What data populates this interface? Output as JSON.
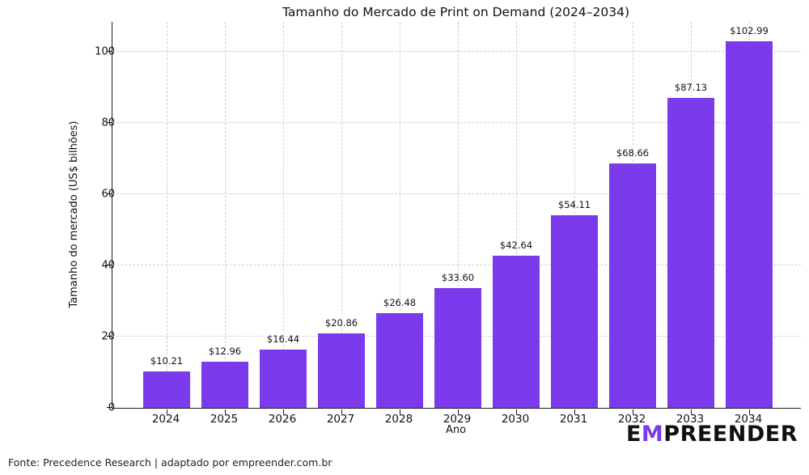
{
  "chart_data": {
    "type": "bar",
    "title": "Tamanho do Mercado de Print on Demand (2024–2034)",
    "xlabel": "Ano",
    "ylabel": "Tamanho do mercado (US$ bilhões)",
    "categories": [
      "2024",
      "2025",
      "2026",
      "2027",
      "2028",
      "2029",
      "2030",
      "2031",
      "2032",
      "2033",
      "2034"
    ],
    "values": [
      10.21,
      12.96,
      16.44,
      20.86,
      26.48,
      33.6,
      42.64,
      54.11,
      68.66,
      87.13,
      102.99
    ],
    "bar_labels": [
      "$10.21",
      "$12.96",
      "$16.44",
      "$20.86",
      "$26.48",
      "$33.60",
      "$42.64",
      "$54.11",
      "$68.66",
      "$87.13",
      "$102.99"
    ],
    "yticks": [
      0,
      20,
      40,
      60,
      80,
      100
    ],
    "ylim": [
      0,
      108.4
    ],
    "bar_color": "#7C3AED",
    "grid": "dashed-both-axes",
    "legend": "none"
  },
  "footer": {
    "source": "Fonte: Precedence Research | adaptado por empreender.com.br"
  },
  "logo": {
    "part1": "E",
    "part2": "M",
    "part3": "PREENDER",
    "m_color": "#7C3AED"
  }
}
